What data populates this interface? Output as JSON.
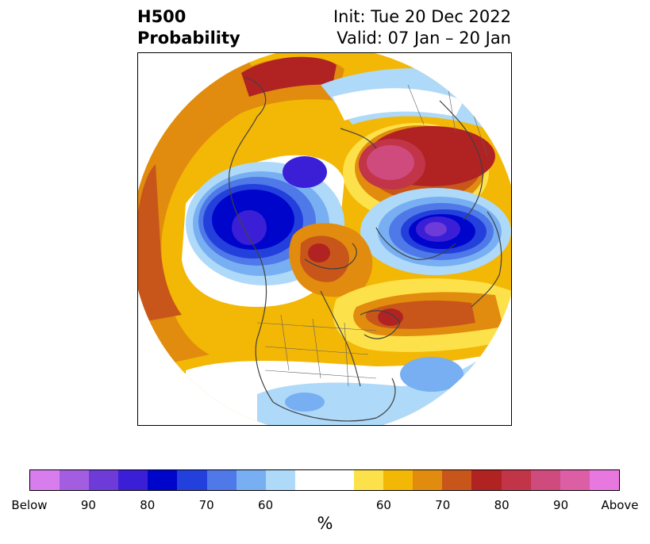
{
  "title": {
    "left_line1": "H500",
    "left_line2": "Probability",
    "right_line1": "Init: Tue 20 Dec 2022",
    "right_line2": "Valid: 07 Jan – 20 Jan"
  },
  "map": {
    "projection": "polar stereographic, north pole centered",
    "anomaly_centers": [
      {
        "region": "Gulf of Alaska / North Pacific",
        "sign": "below",
        "probability": "Below"
      },
      {
        "region": "East Asia / Japan",
        "sign": "below",
        "probability": "Below"
      },
      {
        "region": "Scandinavia / Northern Europe",
        "sign": "below",
        "probability": "Below"
      },
      {
        "region": "East Siberia / Chukotka",
        "sign": "above",
        "probability": "Above"
      },
      {
        "region": "Arctic Ocean / Canadian Archipelago",
        "sign": "above",
        "probability": "80"
      },
      {
        "region": "Greenland / North Atlantic",
        "sign": "above",
        "probability": "80"
      },
      {
        "region": "Southern United States",
        "sign": "below",
        "probability": "60"
      }
    ]
  },
  "colorbar": {
    "colors": [
      "#d77ded",
      "#a35de1",
      "#6e3ad8",
      "#3b1fd6",
      "#0005cc",
      "#2340dc",
      "#4f78e8",
      "#78aff2",
      "#aed9f8",
      "#ffffff",
      "#fde14a",
      "#f3b705",
      "#e18c0e",
      "#c8561a",
      "#b02322",
      "#c23448",
      "#cf4a7d",
      "#dc5fa6",
      "#e977e0"
    ],
    "tick_labels": [
      "Below",
      "90",
      "80",
      "70",
      "60",
      "60",
      "70",
      "80",
      "90",
      "Above"
    ],
    "unit": "%"
  }
}
